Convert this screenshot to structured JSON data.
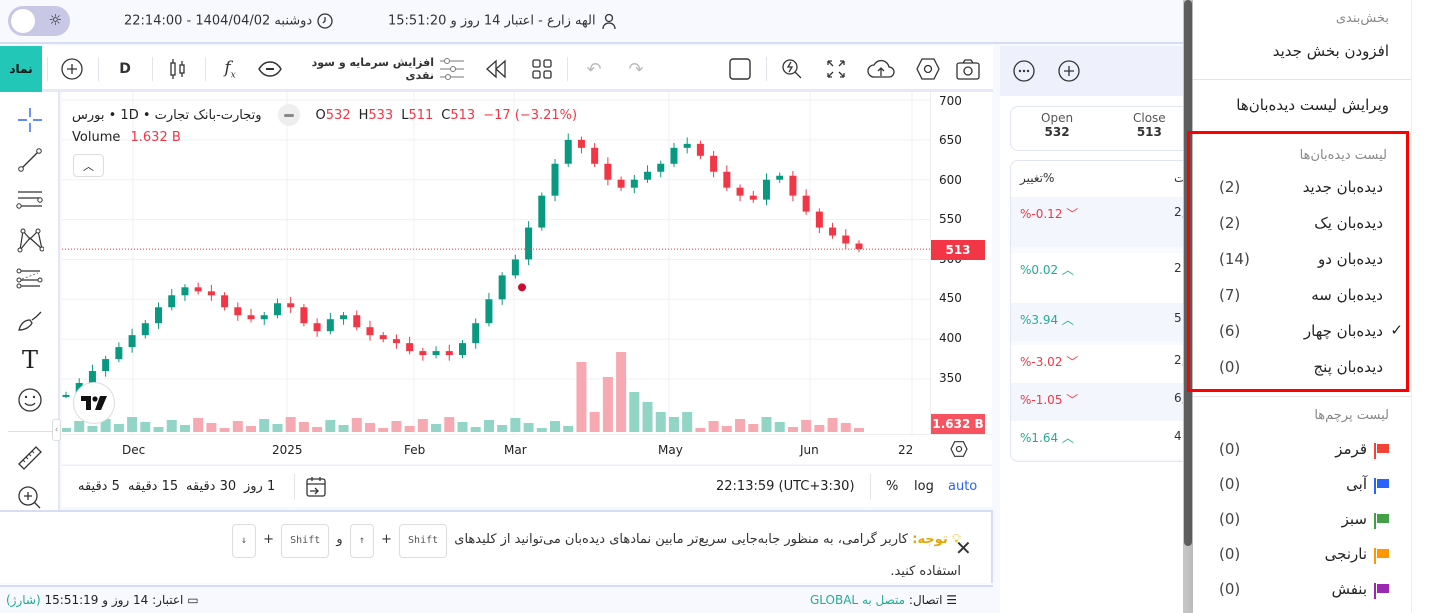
{
  "topbar": {
    "datetime": "دوشنبه 1404/04/02 - 22:14:00",
    "user": "الهه زارع - اعتبار 14 روز و 15:51:20",
    "theme_icon": "sun-icon",
    "clock_icon": "clock-icon",
    "user_icon": "user-icon"
  },
  "toolbar": {
    "symbol_label": "نماد",
    "interval": "D",
    "capital_increase_label": "افزایش سرمایه و سود نقدی",
    "icons": [
      "add-symbol-icon",
      "candles-icon",
      "indicators-icon",
      "eye-icon",
      "sliders-icon",
      "replay-icon",
      "layouts-icon",
      "undo-icon",
      "redo-icon",
      "square-icon",
      "quick-search-icon",
      "fullscreen-icon",
      "cloud-upload-icon",
      "settings-hex-icon",
      "camera-icon"
    ]
  },
  "chart": {
    "symbol_title": "وتجارت-بانک تجارت • 1D • بورس",
    "ohlc": {
      "o_label": "O",
      "o": "532",
      "h_label": "H",
      "h": "533",
      "l_label": "L",
      "l": "511",
      "c_label": "C",
      "c": "513",
      "change": "−17 (−3.21%)"
    },
    "volume_label": "Volume",
    "volume_value": "1.632 B",
    "last_price_tag": "513",
    "volume_tag": "1.632 B",
    "colors": {
      "up": "#089981",
      "down": "#f23645",
      "vol_up": "#92d4c6",
      "vol_down": "#f7a9b1"
    }
  },
  "chart_data": {
    "type": "candlestick",
    "title": "وتجارت-بانک تجارت • 1D • بورس",
    "y_ticks": [
      700,
      650,
      600,
      550,
      500,
      450,
      400,
      350
    ],
    "x_ticks": [
      "Dec",
      "2025",
      "Feb",
      "Mar",
      "May",
      "Jun",
      "22"
    ],
    "last": {
      "open": 532,
      "high": 533,
      "low": 511,
      "close": 513,
      "change": -17,
      "change_pct": -3.21
    },
    "volume_last": "1.632 B",
    "approx_close_path": [
      330,
      345,
      360,
      375,
      390,
      405,
      420,
      440,
      455,
      465,
      460,
      455,
      440,
      430,
      425,
      430,
      445,
      440,
      420,
      410,
      425,
      430,
      415,
      405,
      400,
      395,
      385,
      380,
      385,
      380,
      395,
      420,
      450,
      480,
      500,
      540,
      580,
      620,
      650,
      640,
      620,
      600,
      590,
      600,
      610,
      620,
      640,
      645,
      630,
      610,
      590,
      580,
      575,
      600,
      605,
      580,
      560,
      540,
      530,
      520,
      513
    ],
    "grid": true
  },
  "left_tools": [
    "crosshair-icon",
    "trendline-icon",
    "parallel-lines-icon",
    "pattern-icon",
    "fib-icon",
    "brush-icon",
    "text-icon",
    "emoji-icon",
    "ruler-icon",
    "zoom-in-icon"
  ],
  "time_axis": {
    "labels": [
      {
        "t": "Dec",
        "x": 133
      },
      {
        "t": "2025",
        "x": 287
      },
      {
        "t": "Feb",
        "x": 415
      },
      {
        "t": "Mar",
        "x": 515
      },
      {
        "t": "May",
        "x": 670
      },
      {
        "t": "Jun",
        "x": 811
      },
      {
        "t": "22",
        "x": 905
      }
    ]
  },
  "bottom_bar": {
    "ranges": [
      "5 دقیقه",
      "15 دقیقه",
      "30 دقیقه",
      "1 روز"
    ],
    "time": "22:13:59 (UTC+3:30)",
    "percent": "%",
    "log": "log",
    "auto": "auto"
  },
  "notice": {
    "title": "توجه:",
    "text": "کاربر گرامی، به منظور جابه‌جایی سریع‌تر مابین نمادهای دیده‌بان می‌توانید از کلیدهای",
    "key_shift": "Shift",
    "plus": "+",
    "up": "↑",
    "and": "و",
    "down": "↓",
    "text2": "استفاده کنید."
  },
  "status": {
    "connection_label": "اتصال:",
    "connection_value": "متصل به GLOBAL",
    "credit_label": "اعتبار:",
    "credit_value": "14 روز و 15:51:19",
    "charge": "(شارژ)"
  },
  "watchlist": {
    "open_label": "Open",
    "open": "532",
    "close_label": "Close",
    "close": "513",
    "col_change": "تغییر%",
    "col_other": "ت",
    "rows": [
      {
        "change": "%-0.12",
        "dir": "down",
        "other": "2,"
      },
      {
        "change": "%0.02",
        "dir": "up",
        "other": "2"
      },
      {
        "change": "%3.94",
        "dir": "up",
        "other": "5"
      },
      {
        "change": "%-3.02",
        "dir": "down",
        "other": "2,"
      },
      {
        "change": "%-1.05",
        "dir": "down",
        "other": "6,"
      },
      {
        "change": "%1.64",
        "dir": "up",
        "other": "4"
      }
    ]
  },
  "menu": {
    "section_header": "بخش‌بندی",
    "add_section": "افزودن بخش جدید",
    "edit_watchlists": "ویرایش لیست دیده‌بان‌ها",
    "watchlists_header": "لیست دیده‌بان‌ها",
    "watchlists": [
      {
        "name": "دیده‌بان جدید",
        "count": "(2)",
        "checked": false
      },
      {
        "name": "دیده‌بان یک",
        "count": "(2)",
        "checked": false
      },
      {
        "name": "دیده‌بان دو",
        "count": "(14)",
        "checked": false
      },
      {
        "name": "دیده‌بان سه",
        "count": "(7)",
        "checked": false
      },
      {
        "name": "دیده‌بان چهار",
        "count": "(6)",
        "checked": true
      },
      {
        "name": "دیده‌بان پنج",
        "count": "(0)",
        "checked": false
      }
    ],
    "flags_header": "لیست پرچم‌ها",
    "flags": [
      {
        "name": "قرمز",
        "count": "(0)",
        "color": "#f44336"
      },
      {
        "name": "آبی",
        "count": "(0)",
        "color": "#2962ff"
      },
      {
        "name": "سبز",
        "count": "(0)",
        "color": "#43a047"
      },
      {
        "name": "نارنجی",
        "count": "(0)",
        "color": "#ff9800"
      },
      {
        "name": "بنفش",
        "count": "(0)",
        "color": "#9c27b0"
      }
    ],
    "check": "✓"
  }
}
